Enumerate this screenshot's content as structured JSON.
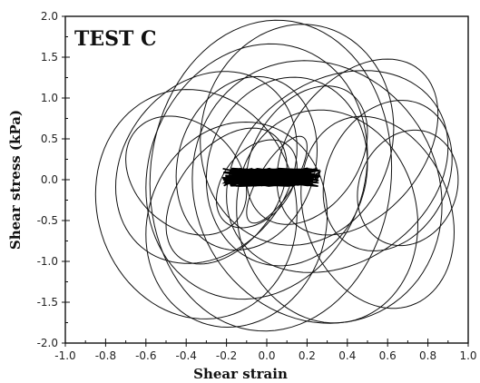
{
  "chart_data": {
    "type": "line",
    "panel_label": "TEST C",
    "xlabel": "Shear strain",
    "ylabel": "Shear stress (kPa)",
    "xlim": [
      -1.0,
      1.0
    ],
    "ylim": [
      -2.0,
      2.0
    ],
    "x_major_ticks": [
      -1.0,
      -0.8,
      -0.6,
      -0.4,
      -0.2,
      0.0,
      0.2,
      0.4,
      0.6,
      0.8,
      1.0
    ],
    "x_tick_labels": [
      "-1.0",
      "-0.8",
      "-0.6",
      "-0.4",
      "-0.2",
      "0.0",
      "0.2",
      "0.4",
      "0.6",
      "0.8",
      "1.0"
    ],
    "y_major_ticks": [
      -2.0,
      -1.5,
      -1.0,
      -0.5,
      0.0,
      0.5,
      1.0,
      1.5,
      2.0
    ],
    "y_tick_labels": [
      "-2.0",
      "-1.5",
      "-1.0",
      "-0.5",
      "0.0",
      "0.5",
      "1.0",
      "1.5",
      "2.0"
    ],
    "grid": false,
    "line_color": "#111111",
    "series": [
      {
        "shape": "hysteresis-loops",
        "loops": [
          {
            "cx": -0.05,
            "cy": 0.1,
            "rx": 0.55,
            "ry": 1.55,
            "tilt": 0.1
          },
          {
            "cx": 0.02,
            "cy": 0.05,
            "rx": 0.6,
            "ry": 1.9,
            "tilt": 0.05
          },
          {
            "cx": 0.25,
            "cy": -0.15,
            "rx": 0.62,
            "ry": 1.6,
            "tilt": -0.08
          },
          {
            "cx": 0.35,
            "cy": 0.1,
            "rx": 0.55,
            "ry": 1.2,
            "tilt": 0.15
          },
          {
            "cx": -0.3,
            "cy": 0.15,
            "rx": 0.45,
            "ry": 1.15,
            "tilt": 0.12
          },
          {
            "cx": -0.35,
            "cy": -0.3,
            "rx": 0.5,
            "ry": 1.4,
            "tilt": -0.06
          },
          {
            "cx": 0.45,
            "cy": 0.4,
            "rx": 0.4,
            "ry": 1.0,
            "tilt": 0.2
          },
          {
            "cx": 0.6,
            "cy": 0.05,
            "rx": 0.32,
            "ry": 0.9,
            "tilt": 0.1
          },
          {
            "cx": 0.55,
            "cy": -0.4,
            "rx": 0.38,
            "ry": 1.15,
            "tilt": -0.12
          },
          {
            "cx": -0.1,
            "cy": 0.2,
            "rx": 0.35,
            "ry": 1.05,
            "tilt": 0.08
          },
          {
            "cx": 0.1,
            "cy": 0.1,
            "rx": 0.4,
            "ry": 1.15,
            "tilt": 0.05
          },
          {
            "cx": -0.2,
            "cy": -0.2,
            "rx": 0.3,
            "ry": 0.75,
            "tilt": 0.18
          },
          {
            "cx": 0.2,
            "cy": 0.3,
            "rx": 0.3,
            "ry": 0.8,
            "tilt": 0.14
          },
          {
            "cx": -0.05,
            "cy": -0.05,
            "rx": 0.2,
            "ry": 0.5,
            "tilt": 0.1
          },
          {
            "cx": 0.05,
            "cy": 0.0,
            "rx": 0.15,
            "ry": 0.35,
            "tilt": 0.2
          },
          {
            "cx": -0.4,
            "cy": 0.05,
            "rx": 0.3,
            "ry": 0.7,
            "tilt": -0.1
          },
          {
            "cx": 0.7,
            "cy": -0.1,
            "rx": 0.25,
            "ry": 0.7,
            "tilt": 0.05
          },
          {
            "cx": 0.3,
            "cy": -0.45,
            "rx": 0.45,
            "ry": 1.3,
            "tilt": -0.05
          },
          {
            "cx": -0.15,
            "cy": -0.55,
            "rx": 0.45,
            "ry": 1.25,
            "tilt": 0.06
          },
          {
            "cx": 0.15,
            "cy": 0.55,
            "rx": 0.48,
            "ry": 1.35,
            "tilt": 0.04
          }
        ]
      }
    ]
  }
}
